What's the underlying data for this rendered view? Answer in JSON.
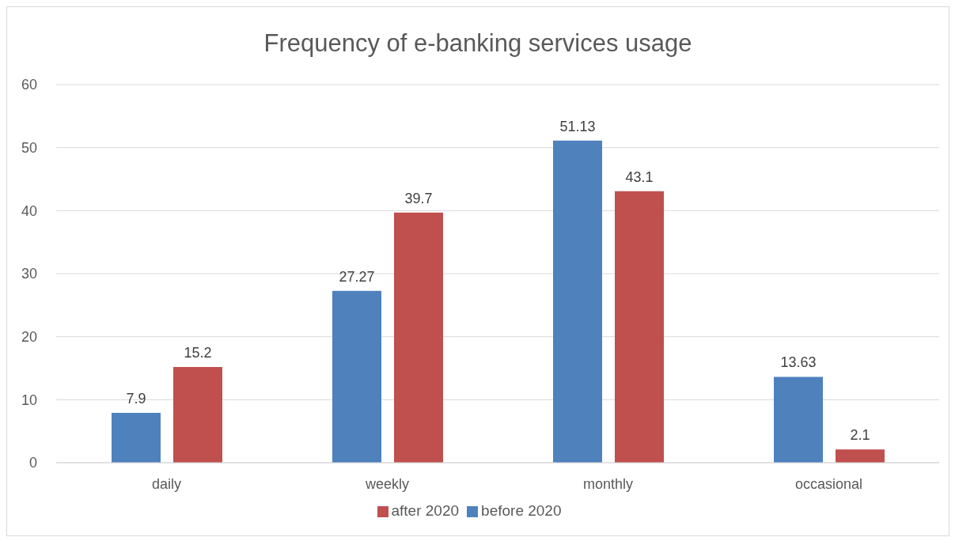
{
  "chart_data": {
    "type": "bar",
    "title": "Frequency of e-banking services usage",
    "categories": [
      "daily",
      "weekly",
      "monthly",
      "occasional"
    ],
    "series": [
      {
        "name": "before 2020",
        "color": "#4f81bd",
        "values": [
          7.9,
          27.27,
          51.13,
          13.63
        ]
      },
      {
        "name": "after 2020",
        "color": "#c0504d",
        "values": [
          15.2,
          39.7,
          43.1,
          2.1
        ]
      }
    ],
    "ylim": [
      0,
      60
    ],
    "yticks": [
      0,
      10,
      20,
      30,
      40,
      50,
      60
    ],
    "grid": "y",
    "legend": "bottom",
    "data_labels": true
  }
}
